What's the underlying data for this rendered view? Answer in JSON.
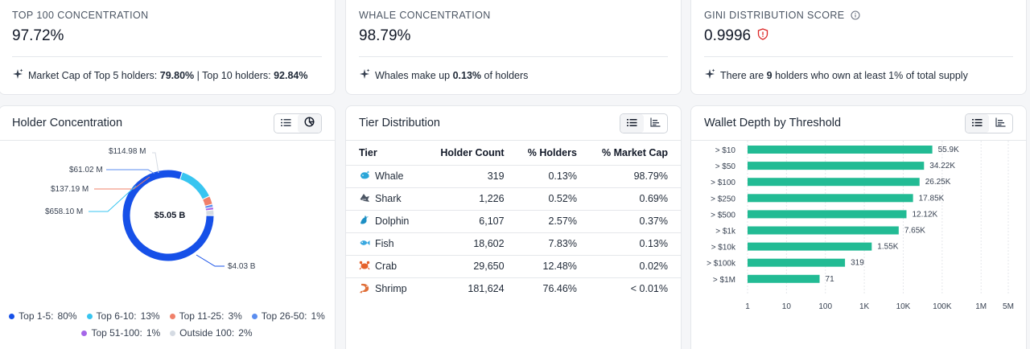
{
  "stats": [
    {
      "label": "TOP 100 CONCENTRATION",
      "value": "97.72%",
      "note_parts": [
        "Market Cap of Top 5 holders: ",
        "79.80%",
        " | Top 10 holders: ",
        "92.84%"
      ]
    },
    {
      "label": "WHALE CONCENTRATION",
      "value": "98.79%",
      "note_parts": [
        "Whales make up ",
        "0.13%",
        " of holders"
      ]
    },
    {
      "label": "GINI DISTRIBUTION SCORE",
      "value": "0.9996",
      "note_parts": [
        "There are ",
        "9",
        " holders who own at least 1% of total supply"
      ]
    }
  ],
  "holder_concentration": {
    "title": "Holder Concentration",
    "center_label": "$5.05 B",
    "callouts": [
      "$114.98 M",
      "$61.02 M",
      "$137.19 M",
      "$658.10 M",
      "$4.03 B"
    ],
    "legend": [
      {
        "label": "Top 1-5:",
        "pct": "80%",
        "color": "#1650e8"
      },
      {
        "label": "Top 6-10:",
        "pct": "13%",
        "color": "#38c5f0"
      },
      {
        "label": "Top 11-25:",
        "pct": "3%",
        "color": "#f0806a"
      },
      {
        "label": "Top 26-50:",
        "pct": "1%",
        "color": "#5b8def"
      },
      {
        "label": "Top 51-100:",
        "pct": "1%",
        "color": "#a566e8"
      },
      {
        "label": "Outside 100:",
        "pct": "2%",
        "color": "#d5dbe3"
      }
    ]
  },
  "tier_distribution": {
    "title": "Tier Distribution",
    "columns": [
      "Tier",
      "Holder Count",
      "% Holders",
      "% Market Cap"
    ],
    "rows": [
      {
        "tier": "Whale",
        "icon": "whale-icon",
        "color": "#2aa6d8",
        "count": "319",
        "pct_holders": "0.13%",
        "pct_mcap": "98.79%"
      },
      {
        "tier": "Shark",
        "icon": "shark-icon",
        "color": "#4b5563",
        "count": "1,226",
        "pct_holders": "0.52%",
        "pct_mcap": "0.69%"
      },
      {
        "tier": "Dolphin",
        "icon": "dolphin-icon",
        "color": "#1c8fc4",
        "count": "6,107",
        "pct_holders": "2.57%",
        "pct_mcap": "0.37%"
      },
      {
        "tier": "Fish",
        "icon": "fish-icon",
        "color": "#3aa8e0",
        "count": "18,602",
        "pct_holders": "7.83%",
        "pct_mcap": "0.13%"
      },
      {
        "tier": "Crab",
        "icon": "crab-icon",
        "color": "#e5622c",
        "count": "29,650",
        "pct_holders": "12.48%",
        "pct_mcap": "0.02%"
      },
      {
        "tier": "Shrimp",
        "icon": "shrimp-icon",
        "color": "#e0703a",
        "count": "181,624",
        "pct_holders": "76.46%",
        "pct_mcap": "< 0.01%"
      }
    ]
  },
  "wallet_depth": {
    "title": "Wallet Depth by Threshold",
    "bar_color": "#22bb94"
  },
  "chart_data": [
    {
      "type": "pie",
      "categories": [
        "Top 1-5",
        "Top 6-10",
        "Top 11-25",
        "Top 26-50",
        "Top 51-100",
        "Outside 100"
      ],
      "values": [
        80,
        13,
        3,
        1,
        1,
        2
      ],
      "value_labels": [
        "$4.03 B",
        "$658.10 M",
        "$137.19 M",
        "$61.02 M",
        "",
        "$114.98 M"
      ]
    },
    {
      "type": "bar",
      "orientation": "horizontal",
      "x_scale": "log",
      "categories": [
        "> $10",
        "> $50",
        "> $100",
        "> $250",
        "> $500",
        "> $1k",
        "> $10k",
        "> $100k",
        "> $1M"
      ],
      "values": [
        55900,
        34220,
        26250,
        17850,
        12120,
        7650,
        1550,
        319,
        71
      ],
      "value_labels": [
        "55.9K",
        "34.22K",
        "26.25K",
        "17.85K",
        "12.12K",
        "7.65K",
        "1.55K",
        "319",
        "71"
      ],
      "x_ticks": [
        1,
        10,
        100,
        1000,
        10000,
        100000,
        1000000,
        5000000
      ],
      "x_tick_labels": [
        "1",
        "10",
        "100",
        "1K",
        "10K",
        "100K",
        "1M",
        "5M"
      ],
      "xlim": [
        1,
        5000000
      ]
    }
  ]
}
